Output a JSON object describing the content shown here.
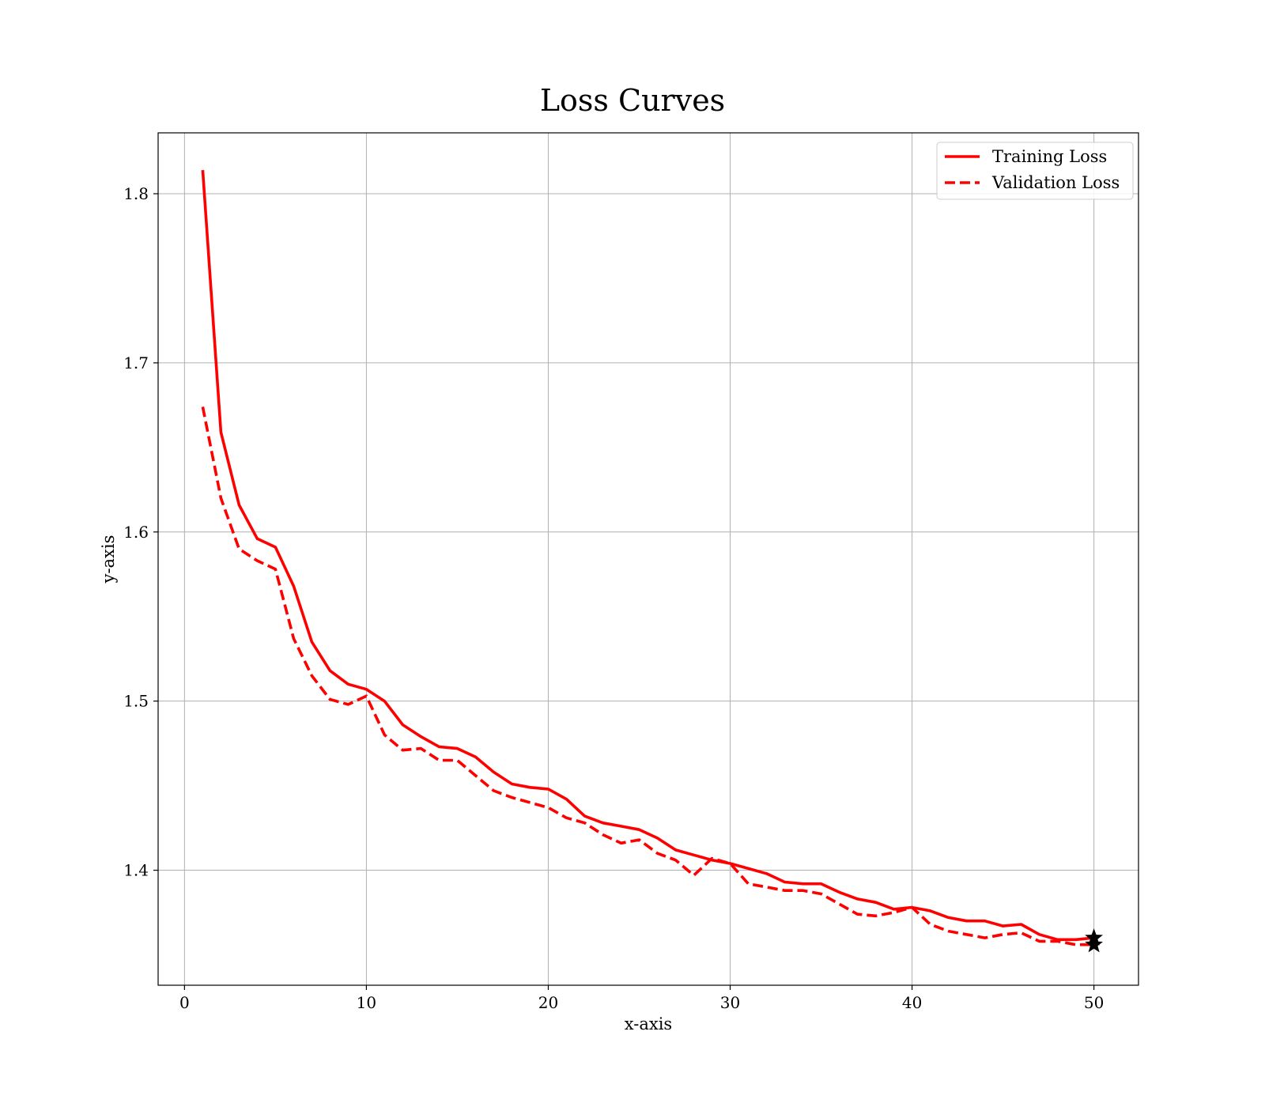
{
  "chart_data": {
    "type": "line",
    "title": "Loss Curves",
    "xlabel": "x-axis",
    "ylabel": "y-axis",
    "xlim": [
      -1.45,
      52.45
    ],
    "ylim": [
      1.332,
      1.836
    ],
    "xticks": [
      0,
      10,
      20,
      30,
      40,
      50
    ],
    "yticks": [
      1.4,
      1.5,
      1.6,
      1.7,
      1.8
    ],
    "grid": true,
    "legend": "upper right",
    "x": [
      1,
      2,
      3,
      4,
      5,
      6,
      7,
      8,
      9,
      10,
      11,
      12,
      13,
      14,
      15,
      16,
      17,
      18,
      19,
      20,
      21,
      22,
      23,
      24,
      25,
      26,
      27,
      28,
      29,
      30,
      31,
      32,
      33,
      34,
      35,
      36,
      37,
      38,
      39,
      40,
      41,
      42,
      43,
      44,
      45,
      46,
      47,
      48,
      49,
      50
    ],
    "series": [
      {
        "name": "Training Loss",
        "color": "#ff0000",
        "style": "solid",
        "values": [
          1.814,
          1.659,
          1.616,
          1.596,
          1.591,
          1.568,
          1.535,
          1.518,
          1.51,
          1.507,
          1.5,
          1.486,
          1.479,
          1.473,
          1.472,
          1.467,
          1.458,
          1.451,
          1.449,
          1.448,
          1.442,
          1.432,
          1.428,
          1.426,
          1.424,
          1.419,
          1.412,
          1.409,
          1.406,
          1.404,
          1.401,
          1.398,
          1.393,
          1.392,
          1.392,
          1.387,
          1.383,
          1.381,
          1.377,
          1.378,
          1.376,
          1.372,
          1.37,
          1.37,
          1.367,
          1.368,
          1.362,
          1.359,
          1.359,
          1.36
        ]
      },
      {
        "name": "Validation Loss",
        "color": "#ff0000",
        "style": "dashed",
        "values": [
          1.674,
          1.62,
          1.59,
          1.583,
          1.578,
          1.537,
          1.515,
          1.501,
          1.498,
          1.503,
          1.48,
          1.471,
          1.472,
          1.465,
          1.465,
          1.456,
          1.447,
          1.443,
          1.44,
          1.437,
          1.431,
          1.428,
          1.421,
          1.416,
          1.418,
          1.41,
          1.406,
          1.397,
          1.407,
          1.404,
          1.392,
          1.39,
          1.388,
          1.388,
          1.386,
          1.38,
          1.374,
          1.373,
          1.375,
          1.378,
          1.368,
          1.364,
          1.362,
          1.36,
          1.362,
          1.363,
          1.358,
          1.358,
          1.356,
          1.356
        ]
      }
    ],
    "markers": [
      {
        "x": 50,
        "y": 1.36,
        "symbol": "star",
        "color": "#000000"
      },
      {
        "x": 50,
        "y": 1.356,
        "symbol": "star",
        "color": "#000000"
      }
    ]
  }
}
